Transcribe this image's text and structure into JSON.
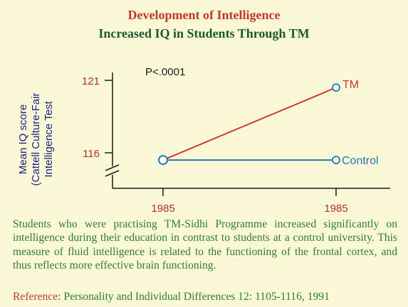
{
  "header": {
    "title": "Development of Intelligence",
    "subtitle": "Increased IQ in Students Through TM"
  },
  "colors": {
    "background": "#fbf8d8",
    "title": "#c0392b",
    "subtitle": "#1a5a2a",
    "axis": "#1a1a1a",
    "ylabel": "#1a237e",
    "tick_label": "#b0302a",
    "tm": "#cf3a2a",
    "control": "#2277b0",
    "body_text": "#2f7d2f",
    "reference_label": "#c0392b"
  },
  "chart_data": {
    "type": "line",
    "ylabel_lines": [
      "Mean IQ score",
      "(Cattell Culture-Fair",
      "Intelligence Test"
    ],
    "y_ticks": [
      116,
      121
    ],
    "y_tick_labels": [
      "116",
      "121"
    ],
    "x_tick_labels": [
      "1985",
      "1985"
    ],
    "annotation": "P<.0001",
    "y_axis_break": true,
    "grid": false,
    "series": [
      {
        "name": "TM",
        "values": [
          115.5,
          120.5
        ]
      },
      {
        "name": "Control",
        "values": [
          115.5,
          115.5
        ]
      }
    ]
  },
  "description": "Students who were practising TM-Sidhi Programme increased significantly on intelligence during their education in contrast to students at a control university. This measure of fluid intelligence is related to the functioning of the frontal cortex, and thus reflects more effective brain functioning.",
  "reference": {
    "label": "Reference:",
    "text": "Personality and Individual Differences 12: 1105-1116, 1991"
  }
}
